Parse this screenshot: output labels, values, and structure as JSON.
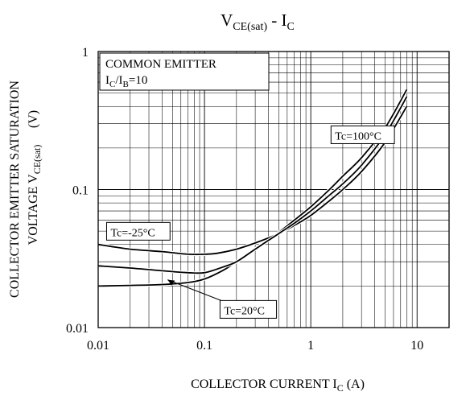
{
  "chart_data": {
    "type": "line",
    "title": {
      "main_1": "V",
      "main_1_sub": "CE(sat)",
      "separator": " - ",
      "main_2": "I",
      "main_2_sub": "C"
    },
    "xaxis": {
      "label": "COLLECTOR CURRENT I",
      "label_sub": "C",
      "unit": " (A)",
      "scale": "log",
      "range": [
        0.01,
        20
      ],
      "ticks": [
        0.01,
        0.1,
        1,
        10
      ],
      "tick_labels": [
        "0.01",
        "0.1",
        "1",
        "10"
      ]
    },
    "yaxis": {
      "label_line1": "COLLECTOR EMITTER SATURATION",
      "label_line2": "VOLTAGE V",
      "label_line2_sub": "CE(sat)",
      "unit": "(V)",
      "scale": "log",
      "range": [
        0.01,
        1
      ],
      "ticks": [
        0.01,
        0.1,
        1
      ],
      "tick_labels": [
        "0.01",
        "0.1",
        "1"
      ]
    },
    "grid": true,
    "legend": "none",
    "conditions": {
      "line1": "COMMON EMITTER",
      "line2_a": "I",
      "line2_a_sub": "C",
      "line2_b": "/I",
      "line2_b_sub": "B",
      "line2_c": "=10"
    },
    "series": [
      {
        "name": "Tc=100°C",
        "x": [
          0.01,
          0.02,
          0.04,
          0.07,
          0.1,
          0.15,
          0.2,
          0.3,
          0.5,
          0.7,
          1,
          1.5,
          2,
          3,
          5,
          8
        ],
        "y": [
          0.02,
          0.0202,
          0.0205,
          0.0212,
          0.0225,
          0.026,
          0.03,
          0.037,
          0.049,
          0.06,
          0.075,
          0.1,
          0.125,
          0.17,
          0.28,
          0.53
        ]
      },
      {
        "name": "Tc=-25°C",
        "x": [
          0.01,
          0.02,
          0.04,
          0.07,
          0.1,
          0.13,
          0.2,
          0.3,
          0.5,
          0.7,
          1,
          1.5,
          2,
          3,
          5,
          8
        ],
        "y": [
          0.04,
          0.037,
          0.0355,
          0.034,
          0.034,
          0.0345,
          0.037,
          0.041,
          0.048,
          0.055,
          0.065,
          0.083,
          0.1,
          0.135,
          0.22,
          0.4
        ]
      },
      {
        "name": "Tc=20°C",
        "x": [
          0.01,
          0.02,
          0.04,
          0.07,
          0.1,
          0.15,
          0.2,
          0.3,
          0.5,
          0.7,
          1,
          1.5,
          2,
          3,
          5,
          8
        ],
        "y": [
          0.028,
          0.027,
          0.0258,
          0.025,
          0.025,
          0.0275,
          0.03,
          0.037,
          0.048,
          0.057,
          0.07,
          0.091,
          0.11,
          0.15,
          0.25,
          0.47
        ]
      }
    ],
    "annotations": [
      {
        "text": "Tc=100°C",
        "anchor_x": 1.55,
        "anchor_y": 0.23
      },
      {
        "text": "Tc=-25°C",
        "anchor_x": 0.012,
        "anchor_y": 0.046
      },
      {
        "text": "Tc=20°C",
        "anchor_x": 0.14,
        "anchor_y": 0.0125,
        "arrow_to": [
          0.045,
          0.0222
        ]
      }
    ]
  }
}
